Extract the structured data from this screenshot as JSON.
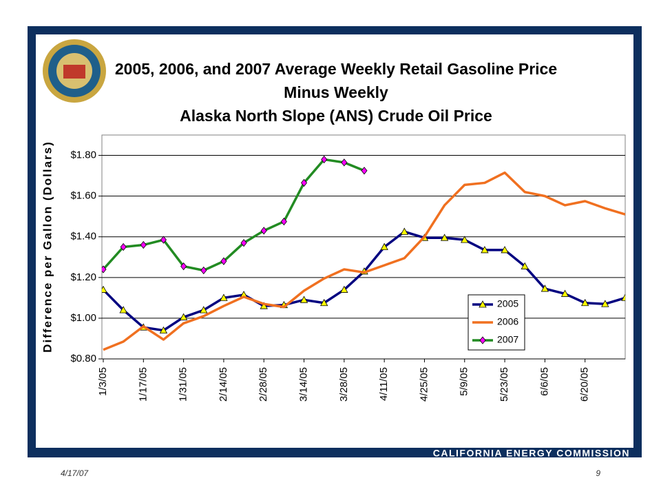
{
  "chart_data": {
    "type": "line",
    "title": [
      "2005, 2006, and 2007 Average Weekly Retail Gasoline Price",
      "Minus Weekly",
      "Alaska North Slope (ANS) Crude Oil Price"
    ],
    "y_label": "Difference per Gallon (Dollars)",
    "categories": [
      "1/3/05",
      null,
      "1/17/05",
      null,
      "1/31/05",
      null,
      "2/14/05",
      null,
      "2/28/05",
      null,
      "3/14/05",
      null,
      "3/28/05",
      null,
      "4/11/05",
      null,
      "4/25/05",
      null,
      "5/9/05",
      null,
      "5/23/05",
      null,
      "6/6/05",
      null,
      "6/20/05",
      null,
      null
    ],
    "series": [
      {
        "name": "2005",
        "color": "#000080",
        "marker": "triangle",
        "marker_color": "#ffff00",
        "values": [
          1.14,
          1.04,
          0.955,
          0.94,
          1.005,
          1.04,
          1.1,
          1.115,
          1.06,
          1.065,
          1.09,
          1.075,
          1.14,
          1.23,
          1.35,
          1.425,
          1.395,
          1.395,
          1.385,
          1.335,
          1.335,
          1.255,
          1.145,
          1.12,
          1.075,
          1.07,
          1.1
        ]
      },
      {
        "name": "2006",
        "color": "#f07020",
        "values": [
          0.845,
          0.885,
          0.96,
          0.895,
          0.975,
          1.01,
          1.06,
          1.105,
          1.07,
          1.055,
          1.135,
          1.195,
          1.24,
          1.225,
          1.26,
          1.295,
          1.4,
          1.555,
          1.655,
          1.665,
          1.715,
          1.62,
          1.6,
          1.555,
          1.575,
          1.54,
          1.51
        ]
      },
      {
        "name": "2007",
        "color": "#228b22",
        "marker": "diamond",
        "marker_color": "#ff00ff",
        "values": [
          1.24,
          1.35,
          1.36,
          1.385,
          1.255,
          1.235,
          1.28,
          1.37,
          1.43,
          1.475,
          1.665,
          1.78,
          1.765,
          1.725,
          null,
          null,
          null,
          null,
          null,
          null,
          null,
          null,
          null,
          null,
          null,
          null,
          null
        ]
      }
    ],
    "ylim": [
      0.8,
      1.9
    ],
    "yticks": [
      {
        "value": 0.8,
        "label": "$0.80"
      },
      {
        "value": 1.0,
        "label": "$1.00"
      },
      {
        "value": 1.2,
        "label": "$1.20"
      },
      {
        "value": 1.4,
        "label": "$1.40"
      },
      {
        "value": 1.6,
        "label": "$1.60"
      },
      {
        "value": 1.8,
        "label": "$1.80"
      }
    ],
    "grid": true,
    "legend": "lower right"
  },
  "footer": {
    "banner": "CALIFORNIA ENERGY COMMISSION",
    "date": "4/17/07",
    "page": "9"
  }
}
